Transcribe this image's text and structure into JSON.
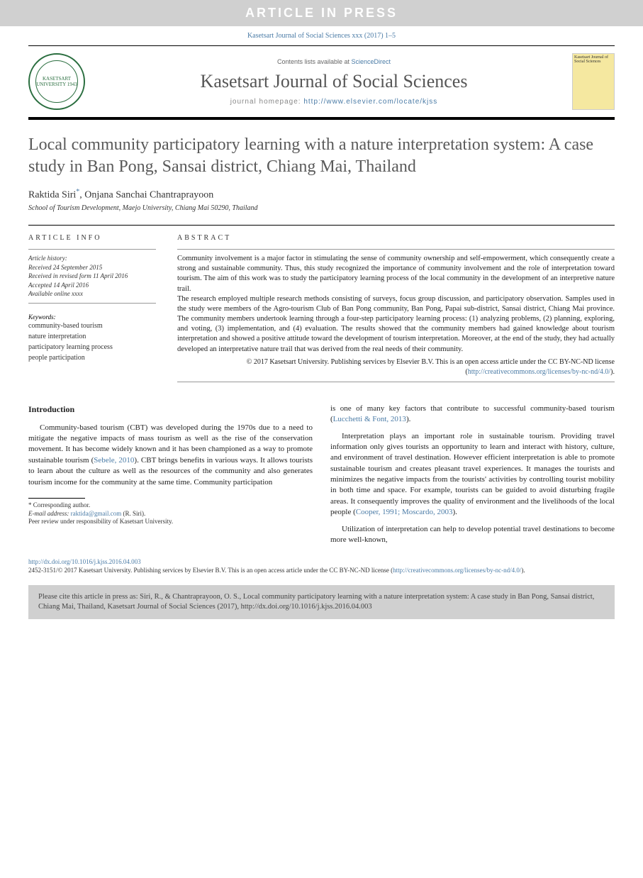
{
  "banner": "ARTICLE IN PRESS",
  "journal_ref": "Kasetsart Journal of Social Sciences xxx (2017) 1–5",
  "header": {
    "contents_prefix": "Contents lists available at ",
    "contents_link": "ScienceDirect",
    "journal_title": "Kasetsart Journal of Social Sciences",
    "homepage_prefix": "journal homepage: ",
    "homepage_url": "http://www.elsevier.com/locate/kjss",
    "logo_text": "KASETSART UNIVERSITY 1943",
    "cover_text": "Kasetsart Journal of Social Sciences"
  },
  "title": "Local community participatory learning with a nature interpretation system: A case study in Ban Pong, Sansai district, Chiang Mai, Thailand",
  "authors": "Raktida Siri*, Onjana Sanchai Chantraprayoon",
  "affiliation": "School of Tourism Development, Maejo University, Chiang Mai 50290, Thailand",
  "article_info": {
    "heading": "ARTICLE INFO",
    "history_label": "Article history:",
    "received": "Received 24 September 2015",
    "revised": "Received in revised form 11 April 2016",
    "accepted": "Accepted 14 April 2016",
    "online": "Available online xxxx",
    "keywords_label": "Keywords:",
    "keywords": "community-based tourism\nnature interpretation\nparticipatory learning process\npeople participation"
  },
  "abstract": {
    "heading": "ABSTRACT",
    "p1": "Community involvement is a major factor in stimulating the sense of community ownership and self-empowerment, which consequently create a strong and sustainable community. Thus, this study recognized the importance of community involvement and the role of interpretation toward tourism. The aim of this work was to study the participatory learning process of the local community in the development of an interpretive nature trail.",
    "p2": "The research employed multiple research methods consisting of surveys, focus group discussion, and participatory observation. Samples used in the study were members of the Agro-tourism Club of Ban Pong community, Ban Pong, Papai sub-district, Sansai district, Chiang Mai province. The community members undertook learning through a four-step participatory learning process: (1) analyzing problems, (2) planning, exploring, and voting, (3) implementation, and (4) evaluation. The results showed that the community members had gained knowledge about tourism interpretation and showed a positive attitude toward the development of tourism interpretation. Moreover, at the end of the study, they had actually developed an interpretative nature trail that was derived from the real needs of their community.",
    "copyright": "© 2017 Kasetsart University. Publishing services by Elsevier B.V. This is an open access article under the CC BY-NC-ND license (",
    "cc_url": "http://creativecommons.org/licenses/by-nc-nd/4.0/",
    "copyright_end": ")."
  },
  "intro": {
    "heading": "Introduction",
    "p1a": "Community-based tourism (CBT) was developed during the 1970s due to a need to mitigate the negative impacts of mass tourism as well as the rise of the conservation movement. It has become widely known and it has been championed as a way to promote sustainable tourism (",
    "p1_cite": "Sebele, 2010",
    "p1b": "). CBT brings benefits in various ways. It allows tourists to learn about the culture as well as the resources of the community and also generates tourism income for the community at the same time. Community participation",
    "p2a": "is one of many key factors that contribute to successful community-based tourism (",
    "p2_cite": "Lucchetti & Font, 2013",
    "p2b": ").",
    "p3a": "Interpretation plays an important role in sustainable tourism. Providing travel information only gives tourists an opportunity to learn and interact with history, culture, and environment of travel destination. However efficient interpretation is able to promote sustainable tourism and creates pleasant travel experiences. It manages the tourists and minimizes the negative impacts from the tourists' activities by controlling tourist mobility in both time and space. For example, tourists can be guided to avoid disturbing fragile areas. It consequently improves the quality of environment and the livelihoods of the local people (",
    "p3_cite": "Cooper, 1991; Moscardo, 2003",
    "p3b": ").",
    "p4": "Utilization of interpretation can help to develop potential travel destinations to become more well-known,"
  },
  "footnotes": {
    "corr": "* Corresponding author.",
    "email_label": "E-mail address: ",
    "email": "raktida@gmail.com",
    "email_suffix": " (R. Siri).",
    "peer": "Peer review under responsibility of Kasetsart University."
  },
  "doi": "http://dx.doi.org/10.1016/j.kjss.2016.04.003",
  "bottom_copyright_a": "2452-3151/© 2017 Kasetsart University. Publishing services by Elsevier B.V. This is an open access article under the CC BY-NC-ND license (",
  "bottom_cc_url": "http://creativecommons.org/licenses/by-nc-nd/4.0/",
  "bottom_copyright_b": ").",
  "citation_box": "Please cite this article in press as: Siri, R., & Chantraprayoon, O. S., Local community participatory learning with a nature interpretation system: A case study in Ban Pong, Sansai district, Chiang Mai, Thailand, Kasetsart Journal of Social Sciences (2017), http://dx.doi.org/10.1016/j.kjss.2016.04.003",
  "colors": {
    "banner_bg": "#d0d0d0",
    "link": "#4a7ba6",
    "logo_green": "#2a6e3f",
    "cover_bg": "#f5e8a0"
  }
}
